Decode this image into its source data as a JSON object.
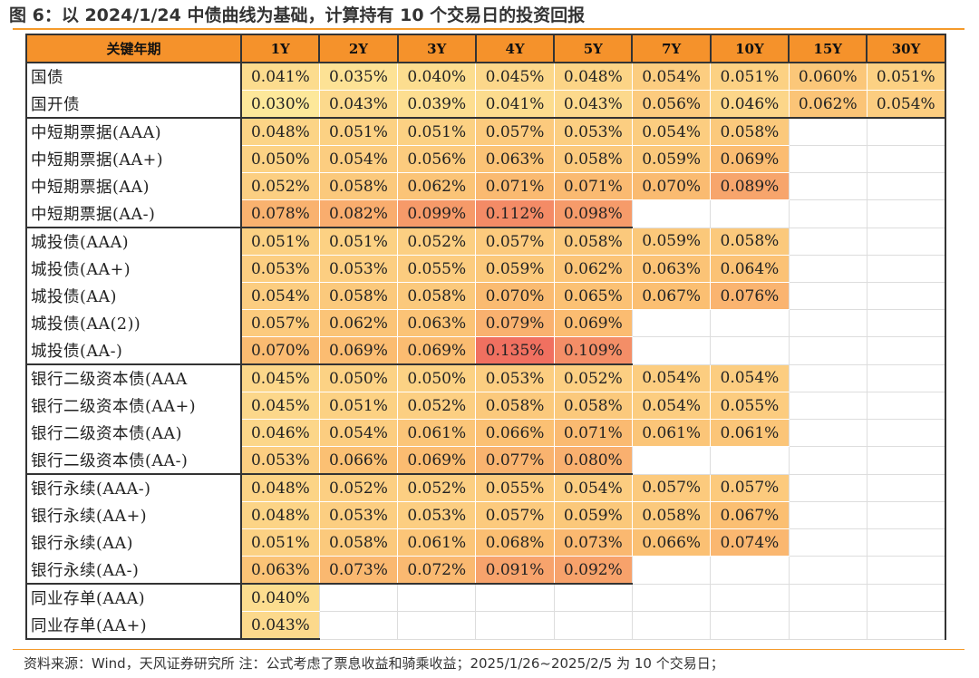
{
  "title": "图 6：以 2024/1/24 中债曲线为基础，计算持有 10 个交易日的投资回报",
  "table": {
    "corner_label": "关键年期",
    "columns": [
      "1Y",
      "2Y",
      "3Y",
      "4Y",
      "5Y",
      "7Y",
      "10Y",
      "15Y",
      "30Y"
    ],
    "groups": [
      {
        "rows": [
          {
            "label": "国债",
            "values": [
              "0.041%",
              "0.035%",
              "0.040%",
              "0.045%",
              "0.048%",
              "0.054%",
              "0.051%",
              "0.060%",
              "0.051%"
            ]
          },
          {
            "label": "国开债",
            "values": [
              "0.030%",
              "0.043%",
              "0.039%",
              "0.041%",
              "0.043%",
              "0.056%",
              "0.046%",
              "0.062%",
              "0.054%"
            ]
          }
        ]
      },
      {
        "rows": [
          {
            "label": "中短期票据(AAA)",
            "values": [
              "0.048%",
              "0.051%",
              "0.051%",
              "0.057%",
              "0.053%",
              "0.054%",
              "0.058%",
              "",
              ""
            ]
          },
          {
            "label": "中短期票据(AA+)",
            "values": [
              "0.050%",
              "0.054%",
              "0.056%",
              "0.063%",
              "0.058%",
              "0.059%",
              "0.069%",
              "",
              ""
            ]
          },
          {
            "label": "中短期票据(AA)",
            "values": [
              "0.052%",
              "0.058%",
              "0.062%",
              "0.071%",
              "0.071%",
              "0.070%",
              "0.089%",
              "",
              ""
            ]
          },
          {
            "label": "中短期票据(AA-)",
            "values": [
              "0.078%",
              "0.082%",
              "0.099%",
              "0.112%",
              "0.098%",
              "",
              "",
              "",
              ""
            ]
          }
        ]
      },
      {
        "rows": [
          {
            "label": "城投债(AAA)",
            "values": [
              "0.051%",
              "0.051%",
              "0.052%",
              "0.057%",
              "0.058%",
              "0.059%",
              "0.058%",
              "",
              ""
            ]
          },
          {
            "label": "城投债(AA+)",
            "values": [
              "0.053%",
              "0.053%",
              "0.055%",
              "0.059%",
              "0.062%",
              "0.063%",
              "0.064%",
              "",
              ""
            ]
          },
          {
            "label": "城投债(AA)",
            "values": [
              "0.054%",
              "0.058%",
              "0.058%",
              "0.070%",
              "0.065%",
              "0.067%",
              "0.076%",
              "",
              ""
            ]
          },
          {
            "label": "城投债(AA(2))",
            "values": [
              "0.057%",
              "0.062%",
              "0.063%",
              "0.079%",
              "0.069%",
              "",
              "",
              "",
              ""
            ]
          },
          {
            "label": "城投债(AA-)",
            "values": [
              "0.070%",
              "0.069%",
              "0.069%",
              "0.135%",
              "0.109%",
              "",
              "",
              "",
              ""
            ]
          }
        ]
      },
      {
        "rows": [
          {
            "label": "银行二级资本债(AAA",
            "values": [
              "0.045%",
              "0.050%",
              "0.050%",
              "0.053%",
              "0.052%",
              "0.054%",
              "0.054%",
              "",
              ""
            ]
          },
          {
            "label": "银行二级资本债(AA+)",
            "values": [
              "0.045%",
              "0.051%",
              "0.052%",
              "0.058%",
              "0.058%",
              "0.054%",
              "0.055%",
              "",
              ""
            ]
          },
          {
            "label": "银行二级资本债(AA)",
            "values": [
              "0.046%",
              "0.054%",
              "0.061%",
              "0.066%",
              "0.071%",
              "0.061%",
              "0.061%",
              "",
              ""
            ]
          },
          {
            "label": "银行二级资本债(AA-)",
            "values": [
              "0.053%",
              "0.066%",
              "0.069%",
              "0.077%",
              "0.080%",
              "",
              "",
              "",
              ""
            ]
          }
        ]
      },
      {
        "rows": [
          {
            "label": "银行永续(AAA-)",
            "values": [
              "0.048%",
              "0.052%",
              "0.052%",
              "0.055%",
              "0.054%",
              "0.057%",
              "0.057%",
              "",
              ""
            ]
          },
          {
            "label": "银行永续(AA+)",
            "values": [
              "0.048%",
              "0.053%",
              "0.053%",
              "0.057%",
              "0.059%",
              "0.058%",
              "0.067%",
              "",
              ""
            ]
          },
          {
            "label": "银行永续(AA)",
            "values": [
              "0.051%",
              "0.058%",
              "0.061%",
              "0.068%",
              "0.073%",
              "0.066%",
              "0.074%",
              "",
              ""
            ]
          },
          {
            "label": "银行永续(AA-)",
            "values": [
              "0.063%",
              "0.073%",
              "0.072%",
              "0.091%",
              "0.092%",
              "",
              "",
              "",
              ""
            ]
          }
        ]
      },
      {
        "rows": [
          {
            "label": "同业存单(AAA)",
            "values": [
              "0.040%",
              "",
              "",
              "",
              "",
              "",
              "",
              "",
              ""
            ]
          },
          {
            "label": "同业存单(AA+)",
            "values": [
              "0.043%",
              "",
              "",
              "",
              "",
              "",
              "",
              "",
              ""
            ]
          }
        ]
      }
    ],
    "color_scale": {
      "low": "#fde89a",
      "mid": "#fbbf72",
      "high": "#f07060",
      "min": 0.03,
      "max": 0.135
    },
    "header_fill": "#f5922b"
  },
  "footer": "资料来源：Wind，天风证券研究所 注：公式考虑了票息收益和骑乘收益；2025/1/26~2025/2/5 为 10 个交易日；"
}
